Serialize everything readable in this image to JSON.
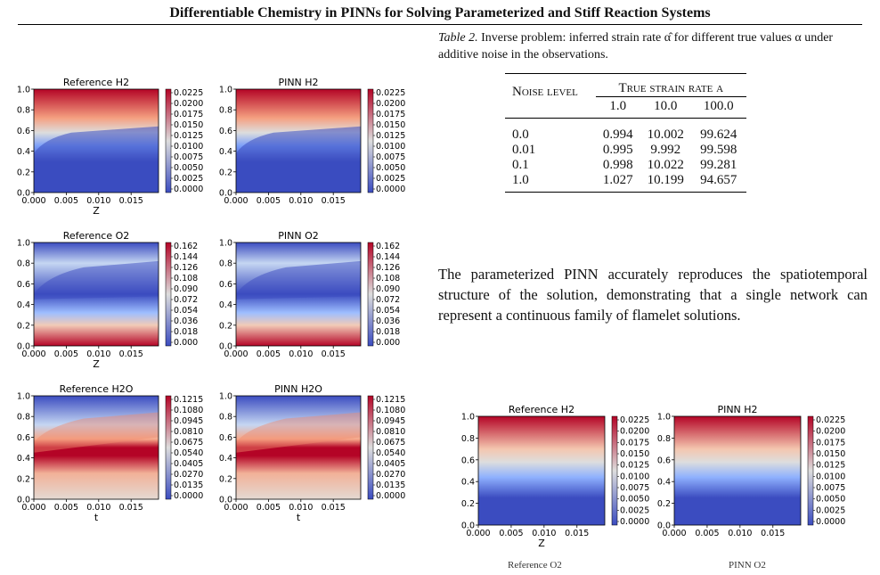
{
  "header": {
    "title": "Differentiable Chemistry in PINNs for Solving Parameterized and Stiff Reaction Systems"
  },
  "figure_left": {
    "panels": [
      {
        "title": "Reference H2",
        "ticks": [
          "0.0225",
          "0.0200",
          "0.0175",
          "0.0150",
          "0.0125",
          "0.0100",
          "0.0075",
          "0.0050",
          "0.0025",
          "0.0000"
        ],
        "type": "h2",
        "xlabel": "Z"
      },
      {
        "title": "PINN H2",
        "ticks": [
          "0.0225",
          "0.0200",
          "0.0175",
          "0.0150",
          "0.0125",
          "0.0100",
          "0.0075",
          "0.0050",
          "0.0025",
          "0.0000"
        ],
        "type": "h2",
        "xlabel": ""
      },
      {
        "title": "Reference O2",
        "ticks": [
          "0.162",
          "0.144",
          "0.126",
          "0.108",
          "0.090",
          "0.072",
          "0.054",
          "0.036",
          "0.018",
          "0.000"
        ],
        "type": "o2",
        "xlabel": "Z"
      },
      {
        "title": "PINN O2",
        "ticks": [
          "0.162",
          "0.144",
          "0.126",
          "0.108",
          "0.090",
          "0.072",
          "0.054",
          "0.036",
          "0.018",
          "0.000"
        ],
        "type": "o2",
        "xlabel": ""
      },
      {
        "title": "Reference H2O",
        "ticks": [
          "0.1215",
          "0.1080",
          "0.0945",
          "0.0810",
          "0.0675",
          "0.0540",
          "0.0405",
          "0.0270",
          "0.0135",
          "0.0000"
        ],
        "type": "h2o",
        "xlabel": "t"
      },
      {
        "title": "PINN H2O",
        "ticks": [
          "0.1215",
          "0.1080",
          "0.0945",
          "0.0810",
          "0.0675",
          "0.0540",
          "0.0405",
          "0.0270",
          "0.0135",
          "0.0000"
        ],
        "type": "h2o",
        "xlabel": "t"
      }
    ],
    "yticks": [
      "1.0",
      "0.8",
      "0.6",
      "0.4",
      "0.2",
      "0.0"
    ],
    "xticks": [
      "0.000",
      "0.005",
      "0.010",
      "0.015"
    ]
  },
  "figure_right": {
    "panels": [
      {
        "title": "Reference H2",
        "ticks": [
          "0.0225",
          "0.0200",
          "0.0175",
          "0.0150",
          "0.0125",
          "0.0100",
          "0.0075",
          "0.0050",
          "0.0025",
          "0.0000"
        ],
        "type": "h2b",
        "xlabel": "Z"
      },
      {
        "title": "PINN H2",
        "ticks": [
          "0.0225",
          "0.0200",
          "0.0175",
          "0.0150",
          "0.0125",
          "0.0100",
          "0.0075",
          "0.0050",
          "0.0025",
          "0.0000"
        ],
        "type": "h2b",
        "xlabel": ""
      }
    ],
    "next_titles": [
      "Reference O2",
      "PINN O2"
    ]
  },
  "table2": {
    "caption_lead": "Table 2.",
    "caption_text": "Inverse problem: inferred strain rate α̂ for different true values α under additive noise in the observations.",
    "col_header_left": "Noise level",
    "col_header_group": "True strain rate α",
    "columns": [
      "1.0",
      "10.0",
      "100.0"
    ],
    "rows": [
      {
        "noise": "0.0",
        "vals": [
          "0.994",
          "10.002",
          "99.624"
        ]
      },
      {
        "noise": "0.01",
        "vals": [
          "0.995",
          "9.992",
          "99.598"
        ]
      },
      {
        "noise": "0.1",
        "vals": [
          "0.998",
          "10.022",
          "99.281"
        ]
      },
      {
        "noise": "1.0",
        "vals": [
          "1.027",
          "10.199",
          "94.657"
        ]
      }
    ]
  },
  "paragraph": "The parameterized PINN accurately reproduces the spatiotemporal structure of the solution, demonstrating that a single network can represent a continuous family of flamelet solutions.",
  "colors": {
    "red": "#b40426",
    "blue": "#3b4cc0",
    "mid": "#dddddd"
  }
}
